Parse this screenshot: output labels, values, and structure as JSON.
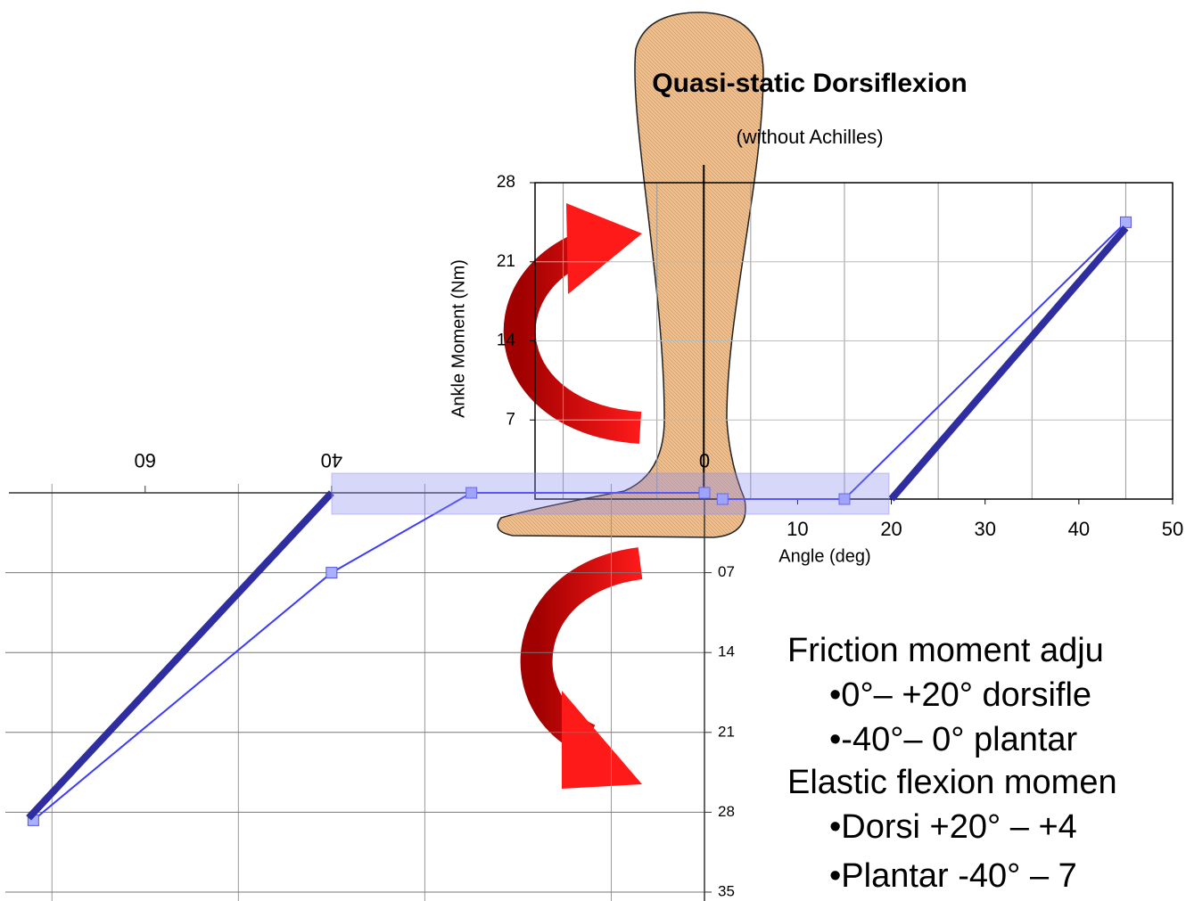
{
  "chart_data": [
    {
      "type": "line",
      "title": "Quasi-static Dorsiflexion",
      "subtitle": "(without Achilles)",
      "y_label": "Ankle Moment (Nm)",
      "x_label": "Angle (deg)",
      "xlim": [
        -18,
        50
      ],
      "ylim": [
        0,
        28
      ],
      "xticks": [
        10,
        20,
        30,
        40,
        50
      ],
      "yticks": [
        7,
        14,
        21,
        28
      ],
      "xgrid": [
        -15,
        -5,
        5,
        15,
        25,
        35,
        45
      ],
      "series": [
        {
          "color": "#3b3bff",
          "marker": "square",
          "x": [
            2,
            15,
            45
          ],
          "values": [
            0,
            0,
            24.5
          ]
        },
        {
          "color": "#2e2ea0",
          "marker": "none",
          "x": [
            20,
            45
          ],
          "values": [
            0,
            24
          ]
        }
      ]
    },
    {
      "type": "line",
      "x_reversed": true,
      "y_reversed": true,
      "xlim": [
        0,
        75
      ],
      "ylim": [
        0,
        35
      ],
      "xticks": [
        60,
        40,
        0
      ],
      "yticks": [
        {
          "value": 7,
          "label": "07"
        },
        14,
        21,
        28,
        35
      ],
      "xgrid": [
        10,
        30,
        50,
        70
      ],
      "series": [
        {
          "color": "#3b3bff",
          "marker": "square",
          "x": [
            0,
            25,
            40,
            72
          ],
          "values": [
            0,
            0,
            7,
            28.7
          ]
        },
        {
          "color": "#2e2ea0",
          "marker": "none",
          "x": [
            40,
            72.5
          ],
          "values": [
            0,
            28.5
          ]
        }
      ]
    }
  ],
  "textbox": {
    "lines": [
      "Friction moment adju",
      "•0°– +20° dorsifle",
      "•-40°– 0° plantar",
      "Elastic flexion momen",
      "•Dorsi +20° – +4",
      "•Plantar -40° – 7"
    ]
  }
}
